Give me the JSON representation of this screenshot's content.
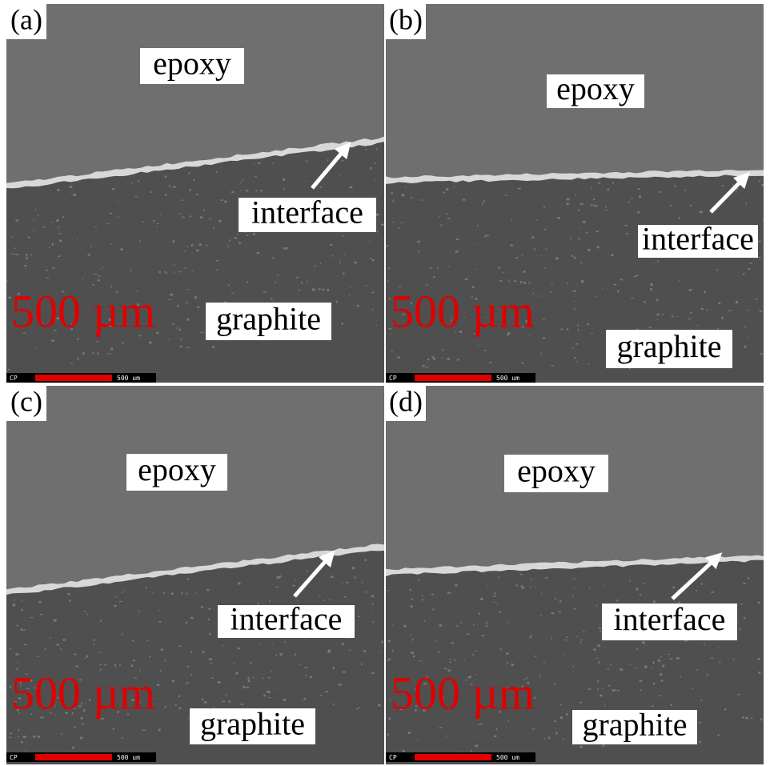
{
  "panels": [
    {
      "label": "(a)",
      "top_material": "epoxy",
      "feature": "interface",
      "bottom_material": "graphite",
      "scale": "500 µm",
      "scalebar": {
        "detector": "CP",
        "length": "500 um"
      }
    },
    {
      "label": "(b)",
      "top_material": "epoxy",
      "feature": "interface",
      "bottom_material": "graphite",
      "scale": "500 µm",
      "scalebar": {
        "detector": "CP",
        "length": "500 um"
      }
    },
    {
      "label": "(c)",
      "top_material": "epoxy",
      "feature": "interface",
      "bottom_material": "graphite",
      "scale": "500 µm",
      "scalebar": {
        "detector": "CP",
        "length": "500 um"
      }
    },
    {
      "label": "(d)",
      "top_material": "epoxy",
      "feature": "interface",
      "bottom_material": "graphite",
      "scale": "500 µm",
      "scalebar": {
        "detector": "CP",
        "length": "500 um"
      }
    }
  ]
}
